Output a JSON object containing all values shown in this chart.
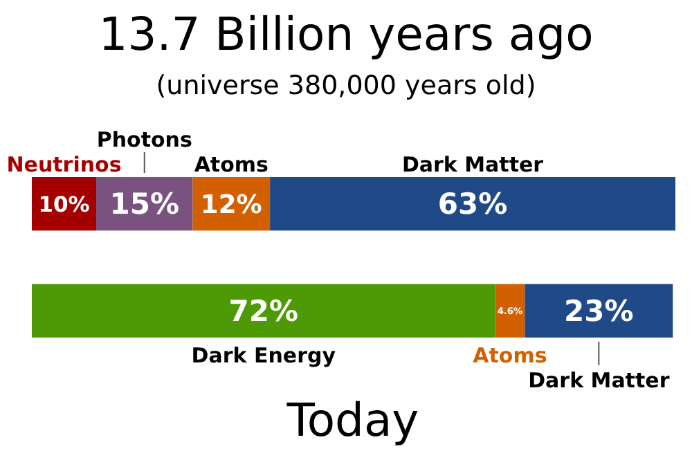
{
  "chart_data": {
    "type": "bar",
    "orientation": "horizontal",
    "stacked": true,
    "title": "13.7 Billion years ago",
    "subtitle": "(universe 380,000 years old)",
    "annotations": [
      "Today"
    ],
    "categories": [
      null,
      null
    ],
    "xlim": [
      0,
      100
    ],
    "tick_labels": false,
    "series": [
      {
        "name": "Neutrinos",
        "color": "#a50000",
        "values": [
          10,
          null
        ],
        "value_labels": [
          "10%",
          null
        ]
      },
      {
        "name": "Photons",
        "color": "#7a5280",
        "values": [
          15,
          null
        ],
        "value_labels": [
          "15%",
          null
        ]
      },
      {
        "name": "Dark Energy",
        "color": "#4e9a06",
        "values": [
          null,
          72
        ],
        "value_labels": [
          null,
          "72%"
        ]
      },
      {
        "name": "Atoms",
        "color": "#d26000",
        "values": [
          12,
          4.6
        ],
        "value_labels": [
          "12%",
          "4.6%"
        ]
      },
      {
        "name": "Dark Matter",
        "color": "#204a87",
        "values": [
          63,
          23
        ],
        "value_labels": [
          "63%",
          "23%"
        ]
      }
    ]
  }
}
